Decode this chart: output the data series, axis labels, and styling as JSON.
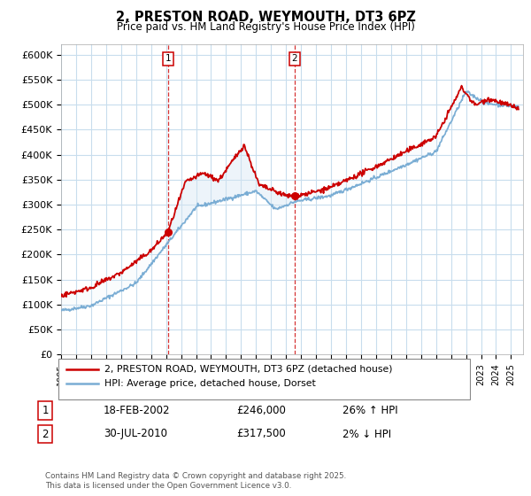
{
  "title": "2, PRESTON ROAD, WEYMOUTH, DT3 6PZ",
  "subtitle": "Price paid vs. HM Land Registry's House Price Index (HPI)",
  "ylabel_ticks": [
    "£0",
    "£50K",
    "£100K",
    "£150K",
    "£200K",
    "£250K",
    "£300K",
    "£350K",
    "£400K",
    "£450K",
    "£500K",
    "£550K",
    "£600K"
  ],
  "ylim": [
    0,
    620000
  ],
  "ytick_vals": [
    0,
    50000,
    100000,
    150000,
    200000,
    250000,
    300000,
    350000,
    400000,
    450000,
    500000,
    550000,
    600000
  ],
  "legend_line1": "2, PRESTON ROAD, WEYMOUTH, DT3 6PZ (detached house)",
  "legend_line2": "HPI: Average price, detached house, Dorset",
  "sale1_label": "1",
  "sale1_date": "18-FEB-2002",
  "sale1_price": "£246,000",
  "sale1_hpi": "26% ↑ HPI",
  "sale2_label": "2",
  "sale2_date": "30-JUL-2010",
  "sale2_price": "£317,500",
  "sale2_hpi": "2% ↓ HPI",
  "copyright": "Contains HM Land Registry data © Crown copyright and database right 2025.\nThis data is licensed under the Open Government Licence v3.0.",
  "line_color_red": "#cc0000",
  "line_color_blue": "#7aadd4",
  "fill_color": "#d6e8f5",
  "bg_color": "#ffffff",
  "grid_color": "#c8dded",
  "sale1_year": 2002.13,
  "sale2_year": 2010.58,
  "sale1_price_val": 246000,
  "sale2_price_val": 317500
}
